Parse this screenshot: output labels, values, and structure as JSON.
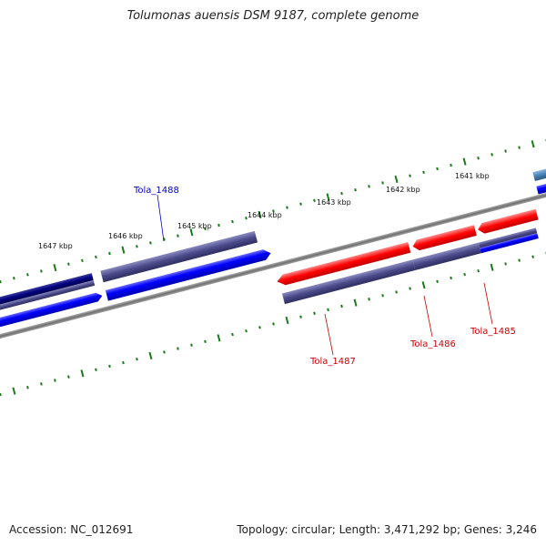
{
  "title": "Tolumonas auensis DSM 9187, complete genome",
  "footer": {
    "accession": "Accession: NC_012691",
    "summary": "Topology: circular; Length: 3,471,292 bp; Genes: 3,246"
  },
  "colors": {
    "ruler_ticks": "#1a7a1a",
    "backbone": "#808080",
    "gene_plus_dark": "#000080",
    "gene_plus": "#0000ff",
    "gene_slate": "#4a4a8a",
    "gene_red": "#ff0000",
    "gene_steel": "#4682b4",
    "label_blue": "#0000cc",
    "label_red": "#cc0000"
  },
  "scale_labels": [
    "1641 kbp",
    "1642 kbp",
    "1643 kbp",
    "1644 kbp",
    "1645 kbp",
    "1646 kbp",
    "1647 kbp"
  ],
  "gene_labels": [
    {
      "name": "Tola_1488",
      "color": "#0000cc"
    },
    {
      "name": "Tola_1487",
      "color": "#cc0000"
    },
    {
      "name": "Tola_1486",
      "color": "#cc0000"
    },
    {
      "name": "Tola_1485",
      "color": "#cc0000"
    }
  ]
}
